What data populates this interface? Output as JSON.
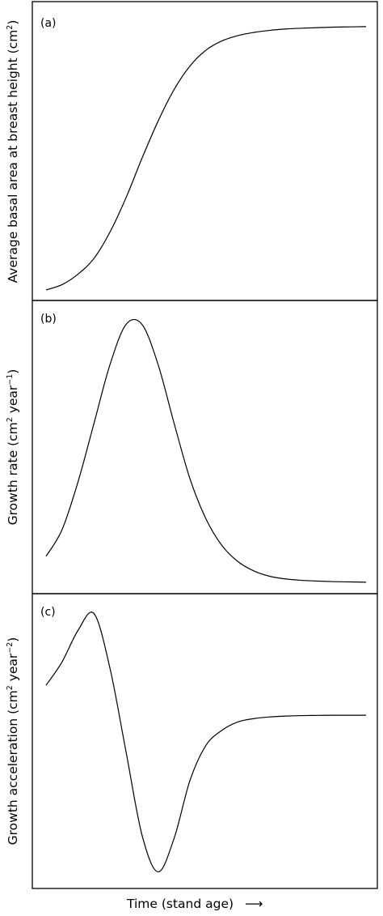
{
  "chart_data": [
    {
      "type": "line",
      "panel_label": "(a)",
      "ylabel": {
        "main": "Average basal area at breast height (cm",
        "sup": "2",
        "close": ")"
      },
      "x": [
        0.0,
        0.05,
        0.1,
        0.15,
        0.2,
        0.25,
        0.3,
        0.35,
        0.4,
        0.45,
        0.5,
        0.55,
        0.6,
        0.65,
        0.7,
        0.75,
        0.8,
        0.85,
        0.9,
        0.95,
        1.0
      ],
      "y": [
        0.0,
        0.02,
        0.06,
        0.12,
        0.22,
        0.35,
        0.5,
        0.64,
        0.76,
        0.85,
        0.91,
        0.945,
        0.965,
        0.977,
        0.985,
        0.99,
        0.993,
        0.995,
        0.997,
        0.998,
        0.999
      ],
      "ylim": [
        -0.04,
        1.06
      ],
      "ticks": "none",
      "grid": false
    },
    {
      "type": "line",
      "panel_label": "(b)",
      "ylabel": {
        "main": "Growth rate (cm",
        "sup": "2",
        "mid": " year",
        "sup2": "−1",
        "close": ")"
      },
      "x": [
        0.0,
        0.05,
        0.1,
        0.15,
        0.2,
        0.25,
        0.3,
        0.35,
        0.4,
        0.45,
        0.5,
        0.55,
        0.6,
        0.65,
        0.7,
        0.75,
        0.8,
        0.85,
        0.9,
        0.95,
        1.0
      ],
      "y": [
        0.1,
        0.2,
        0.38,
        0.6,
        0.82,
        0.97,
        0.97,
        0.82,
        0.6,
        0.39,
        0.24,
        0.14,
        0.08,
        0.045,
        0.025,
        0.015,
        0.01,
        0.007,
        0.005,
        0.004,
        0.003
      ],
      "ylim": [
        -0.04,
        1.06
      ],
      "ticks": "none",
      "grid": false
    },
    {
      "type": "line",
      "panel_label": "(c)",
      "ylabel": {
        "main": "Growth acceleration (cm",
        "sup": "2",
        "mid": " year",
        "sup2": "−2",
        "close": ")"
      },
      "x": [
        0.0,
        0.05,
        0.1,
        0.15,
        0.2,
        0.25,
        0.3,
        0.35,
        0.4,
        0.45,
        0.5,
        0.55,
        0.6,
        0.65,
        0.7,
        0.75,
        0.8,
        0.85,
        0.9,
        0.95,
        1.0
      ],
      "y": [
        0.52,
        0.66,
        0.85,
        0.95,
        0.62,
        0.12,
        -0.38,
        -0.6,
        -0.4,
        -0.05,
        0.16,
        0.25,
        0.3,
        0.32,
        0.33,
        0.335,
        0.338,
        0.339,
        0.34,
        0.34,
        0.34
      ],
      "ylim": [
        -0.7,
        1.07
      ],
      "ticks": "none",
      "grid": false
    }
  ],
  "xlabel": "Time (stand age)",
  "xlabel_arrow": "⟶",
  "colors": {
    "line": "#000000",
    "frame": "#000000",
    "background": "#ffffff"
  }
}
